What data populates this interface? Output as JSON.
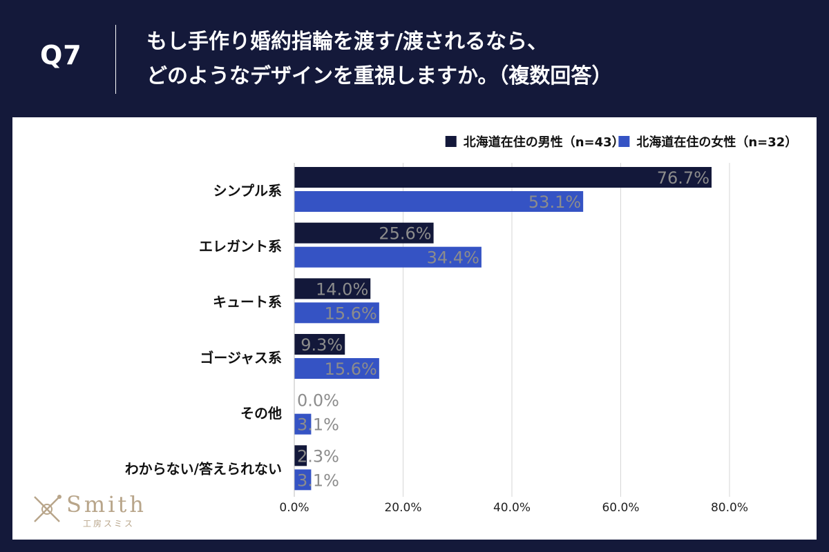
{
  "header": {
    "q_number": "Q7",
    "question_line1": "もし手作り婚約指輪を渡す/渡されるなら、",
    "question_line2": "どのようなデザインを重視しますか。（複数回答）"
  },
  "logo": {
    "word": "Smith",
    "sub": "工房スミス"
  },
  "colors": {
    "male": "#13183a",
    "female": "#3553c4",
    "grid": "#d6d6d6",
    "label": "#8c8c8c"
  },
  "chart_data": {
    "type": "bar",
    "orientation": "horizontal",
    "categories": [
      "シンプル系",
      "エレガント系",
      "キュート系",
      "ゴージャス系",
      "その他",
      "わからない/答えられない"
    ],
    "series": [
      {
        "name": "北海道在住の男性（n=43）",
        "values": [
          76.7,
          25.6,
          14.0,
          9.3,
          0.0,
          2.3
        ]
      },
      {
        "name": "北海道在住の女性（n=32）",
        "values": [
          53.1,
          34.4,
          15.6,
          15.6,
          3.1,
          3.1
        ]
      }
    ],
    "value_labels": [
      [
        "76.7%",
        "25.6%",
        "14.0%",
        "9.3%",
        "0.0%",
        "2.3%"
      ],
      [
        "53.1%",
        "34.4%",
        "15.6%",
        "15.6%",
        "3.1%",
        "3.1%"
      ]
    ],
    "xlim": [
      0,
      80
    ],
    "xticks": [
      0,
      20,
      40,
      60,
      80
    ],
    "xtick_labels": [
      "0.0%",
      "20.0%",
      "40.0%",
      "60.0%",
      "80.0%"
    ],
    "grid": true,
    "legend": "top-right"
  }
}
